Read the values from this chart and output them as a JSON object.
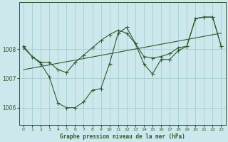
{
  "title": "Graphe pression niveau de la mer (hPa)",
  "background_color": "#cde8ec",
  "plot_bg_color": "#cde8ec",
  "line_color": "#2d5a2d",
  "grid_color": "#9cc8cc",
  "text_color": "#2d5a2d",
  "xlim": [
    -0.5,
    23.5
  ],
  "ylim": [
    1005.4,
    1009.6
  ],
  "yticks": [
    1006,
    1007,
    1008
  ],
  "xticks": [
    0,
    1,
    2,
    3,
    4,
    5,
    6,
    7,
    8,
    9,
    10,
    11,
    12,
    13,
    14,
    15,
    16,
    17,
    18,
    19,
    20,
    21,
    22,
    23
  ],
  "line1_x": [
    0,
    1,
    2,
    3,
    4,
    5,
    6,
    7,
    8,
    9,
    10,
    11,
    12,
    13,
    14,
    15,
    16,
    17,
    18,
    19,
    20,
    21,
    22,
    23
  ],
  "line1_y": [
    1008.1,
    1007.75,
    1007.55,
    1007.55,
    1007.3,
    1007.2,
    1007.55,
    1007.8,
    1008.05,
    1008.3,
    1008.5,
    1008.65,
    1008.55,
    1008.2,
    1007.75,
    1007.7,
    1007.75,
    1007.85,
    1008.05,
    1008.1,
    1009.05,
    1009.1,
    1009.1,
    1008.1
  ],
  "line2_x": [
    0,
    1,
    2,
    3,
    4,
    5,
    6,
    7,
    8,
    9,
    10,
    11,
    12,
    13,
    14,
    15,
    16,
    17,
    18,
    19,
    20,
    21,
    22,
    23
  ],
  "line2_y": [
    1008.05,
    1007.75,
    1007.5,
    1007.05,
    1006.15,
    1006.0,
    1006.0,
    1006.2,
    1006.6,
    1006.65,
    1007.5,
    1008.55,
    1008.75,
    1008.2,
    1007.5,
    1007.15,
    1007.65,
    1007.65,
    1007.95,
    1008.1,
    1009.05,
    1009.1,
    1009.1,
    1008.1
  ],
  "trend_x": [
    0,
    23
  ],
  "trend_y": [
    1007.3,
    1008.55
  ]
}
